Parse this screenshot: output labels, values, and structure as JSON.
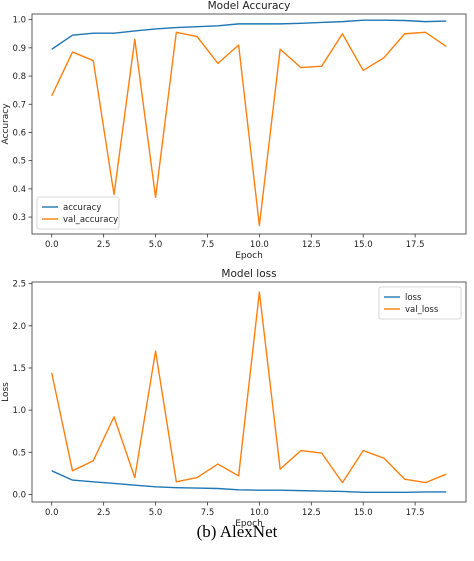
{
  "caption": "(b) AlexNet",
  "colors": {
    "train": "#1f77b4",
    "val": "#ff7f0e"
  },
  "chart_data": [
    {
      "type": "line",
      "title": "Model Accuracy",
      "xlabel": "Epoch",
      "ylabel": "Accuracy",
      "xlim": [
        -0.95,
        19.95
      ],
      "ylim": [
        0.24,
        1.02
      ],
      "xticks": [
        0.0,
        2.5,
        5.0,
        7.5,
        10.0,
        12.5,
        15.0,
        17.5
      ],
      "xtick_labels": [
        "0.0",
        "2.5",
        "5.0",
        "7.5",
        "10.0",
        "12.5",
        "15.0",
        "17.5"
      ],
      "yticks": [
        0.3,
        0.4,
        0.5,
        0.6,
        0.7,
        0.8,
        0.9,
        1.0
      ],
      "ytick_labels": [
        "0.3",
        "0.4",
        "0.5",
        "0.6",
        "0.7",
        "0.8",
        "0.9",
        "1.0"
      ],
      "legend_position": "lower-left",
      "x": [
        0,
        1,
        2,
        3,
        4,
        5,
        6,
        7,
        8,
        9,
        10,
        11,
        12,
        13,
        14,
        15,
        16,
        17,
        18,
        19
      ],
      "series": [
        {
          "name": "accuracy",
          "color": "#1f77b4",
          "values": [
            0.895,
            0.945,
            0.952,
            0.952,
            0.96,
            0.967,
            0.972,
            0.975,
            0.978,
            0.985,
            0.985,
            0.985,
            0.987,
            0.99,
            0.993,
            0.998,
            0.998,
            0.997,
            0.993,
            0.995
          ]
        },
        {
          "name": "val_accuracy",
          "color": "#ff7f0e",
          "values": [
            0.73,
            0.885,
            0.855,
            0.38,
            0.93,
            0.37,
            0.955,
            0.94,
            0.845,
            0.91,
            0.27,
            0.895,
            0.83,
            0.835,
            0.95,
            0.82,
            0.865,
            0.95,
            0.955,
            0.905
          ]
        }
      ]
    },
    {
      "type": "line",
      "title": "Model loss",
      "xlabel": "Epoch",
      "ylabel": "Loss",
      "xlim": [
        -0.95,
        19.95
      ],
      "ylim": [
        -0.09,
        2.52
      ],
      "xticks": [
        0.0,
        2.5,
        5.0,
        7.5,
        10.0,
        12.5,
        15.0,
        17.5
      ],
      "xtick_labels": [
        "0.0",
        "2.5",
        "5.0",
        "7.5",
        "10.0",
        "12.5",
        "15.0",
        "17.5"
      ],
      "yticks": [
        0.0,
        0.5,
        1.0,
        1.5,
        2.0,
        2.5
      ],
      "ytick_labels": [
        "0.0",
        "0.5",
        "1.0",
        "1.5",
        "2.0",
        "2.5"
      ],
      "legend_position": "upper-right",
      "x": [
        0,
        1,
        2,
        3,
        4,
        5,
        6,
        7,
        8,
        9,
        10,
        11,
        12,
        13,
        14,
        15,
        16,
        17,
        18,
        19
      ],
      "series": [
        {
          "name": "loss",
          "color": "#1f77b4",
          "values": [
            0.28,
            0.17,
            0.15,
            0.13,
            0.11,
            0.09,
            0.08,
            0.075,
            0.07,
            0.055,
            0.05,
            0.05,
            0.045,
            0.04,
            0.035,
            0.025,
            0.025,
            0.025,
            0.03,
            0.03
          ]
        },
        {
          "name": "val_loss",
          "color": "#ff7f0e",
          "values": [
            1.44,
            0.28,
            0.4,
            0.92,
            0.2,
            1.7,
            0.15,
            0.2,
            0.36,
            0.22,
            2.4,
            0.3,
            0.52,
            0.49,
            0.14,
            0.52,
            0.43,
            0.18,
            0.14,
            0.24
          ]
        }
      ]
    }
  ]
}
